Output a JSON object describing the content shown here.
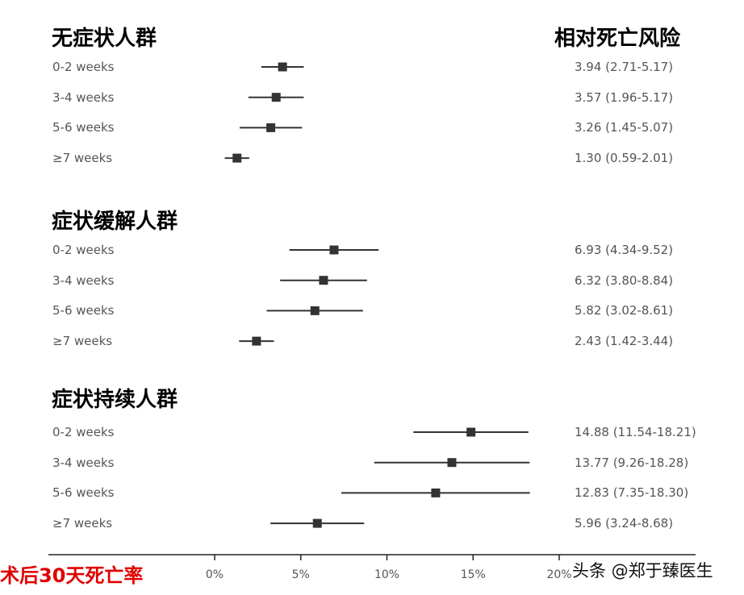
{
  "header": {
    "right_title": "相对死亡风险"
  },
  "footer": {
    "axis_title": "术后30天死亡率",
    "watermark": "头条 @郑于臻医生"
  },
  "chart_data": {
    "type": "forest",
    "xlim": [
      0,
      20
    ],
    "x_ticks": [
      {
        "value": 0,
        "label": "0%"
      },
      {
        "value": 5,
        "label": "5%"
      },
      {
        "value": 10,
        "label": "10%"
      },
      {
        "value": 15,
        "label": "15%"
      },
      {
        "value": 20,
        "label": "20%"
      }
    ],
    "groups": [
      {
        "title": "无症状人群",
        "rows": [
          {
            "label": "0-2 weeks",
            "estimate": 3.94,
            "low": 2.71,
            "high": 5.17,
            "text": "3.94 (2.71-5.17)"
          },
          {
            "label": "3-4 weeks",
            "estimate": 3.57,
            "low": 1.96,
            "high": 5.17,
            "text": "3.57 (1.96-5.17)"
          },
          {
            "label": "5-6 weeks",
            "estimate": 3.26,
            "low": 1.45,
            "high": 5.07,
            "text": "3.26 (1.45-5.07)"
          },
          {
            "label": "≥7 weeks",
            "estimate": 1.3,
            "low": 0.59,
            "high": 2.01,
            "text": "1.30 (0.59-2.01)"
          }
        ]
      },
      {
        "title": "症状缓解人群",
        "rows": [
          {
            "label": "0-2 weeks",
            "estimate": 6.93,
            "low": 4.34,
            "high": 9.52,
            "text": "6.93 (4.34-9.52)"
          },
          {
            "label": "3-4 weeks",
            "estimate": 6.32,
            "low": 3.8,
            "high": 8.84,
            "text": "6.32 (3.80-8.84)"
          },
          {
            "label": "5-6 weeks",
            "estimate": 5.82,
            "low": 3.02,
            "high": 8.61,
            "text": "5.82 (3.02-8.61)"
          },
          {
            "label": "≥7 weeks",
            "estimate": 2.43,
            "low": 1.42,
            "high": 3.44,
            "text": "2.43 (1.42-3.44)"
          }
        ]
      },
      {
        "title": "症状持续人群",
        "rows": [
          {
            "label": "0-2 weeks",
            "estimate": 14.88,
            "low": 11.54,
            "high": 18.21,
            "text": "14.88 (11.54-18.21)"
          },
          {
            "label": "3-4 weeks",
            "estimate": 13.77,
            "low": 9.26,
            "high": 18.28,
            "text": "13.77 (9.26-18.28)"
          },
          {
            "label": "5-6 weeks",
            "estimate": 12.83,
            "low": 7.35,
            "high": 18.3,
            "text": "12.83 (7.35-18.30)"
          },
          {
            "label": "≥7 weeks",
            "estimate": 5.96,
            "low": 3.24,
            "high": 8.68,
            "text": "5.96 (3.24-8.68)"
          }
        ]
      }
    ],
    "colors": {
      "marker": "#333333",
      "axis_title": "#e00000"
    }
  }
}
